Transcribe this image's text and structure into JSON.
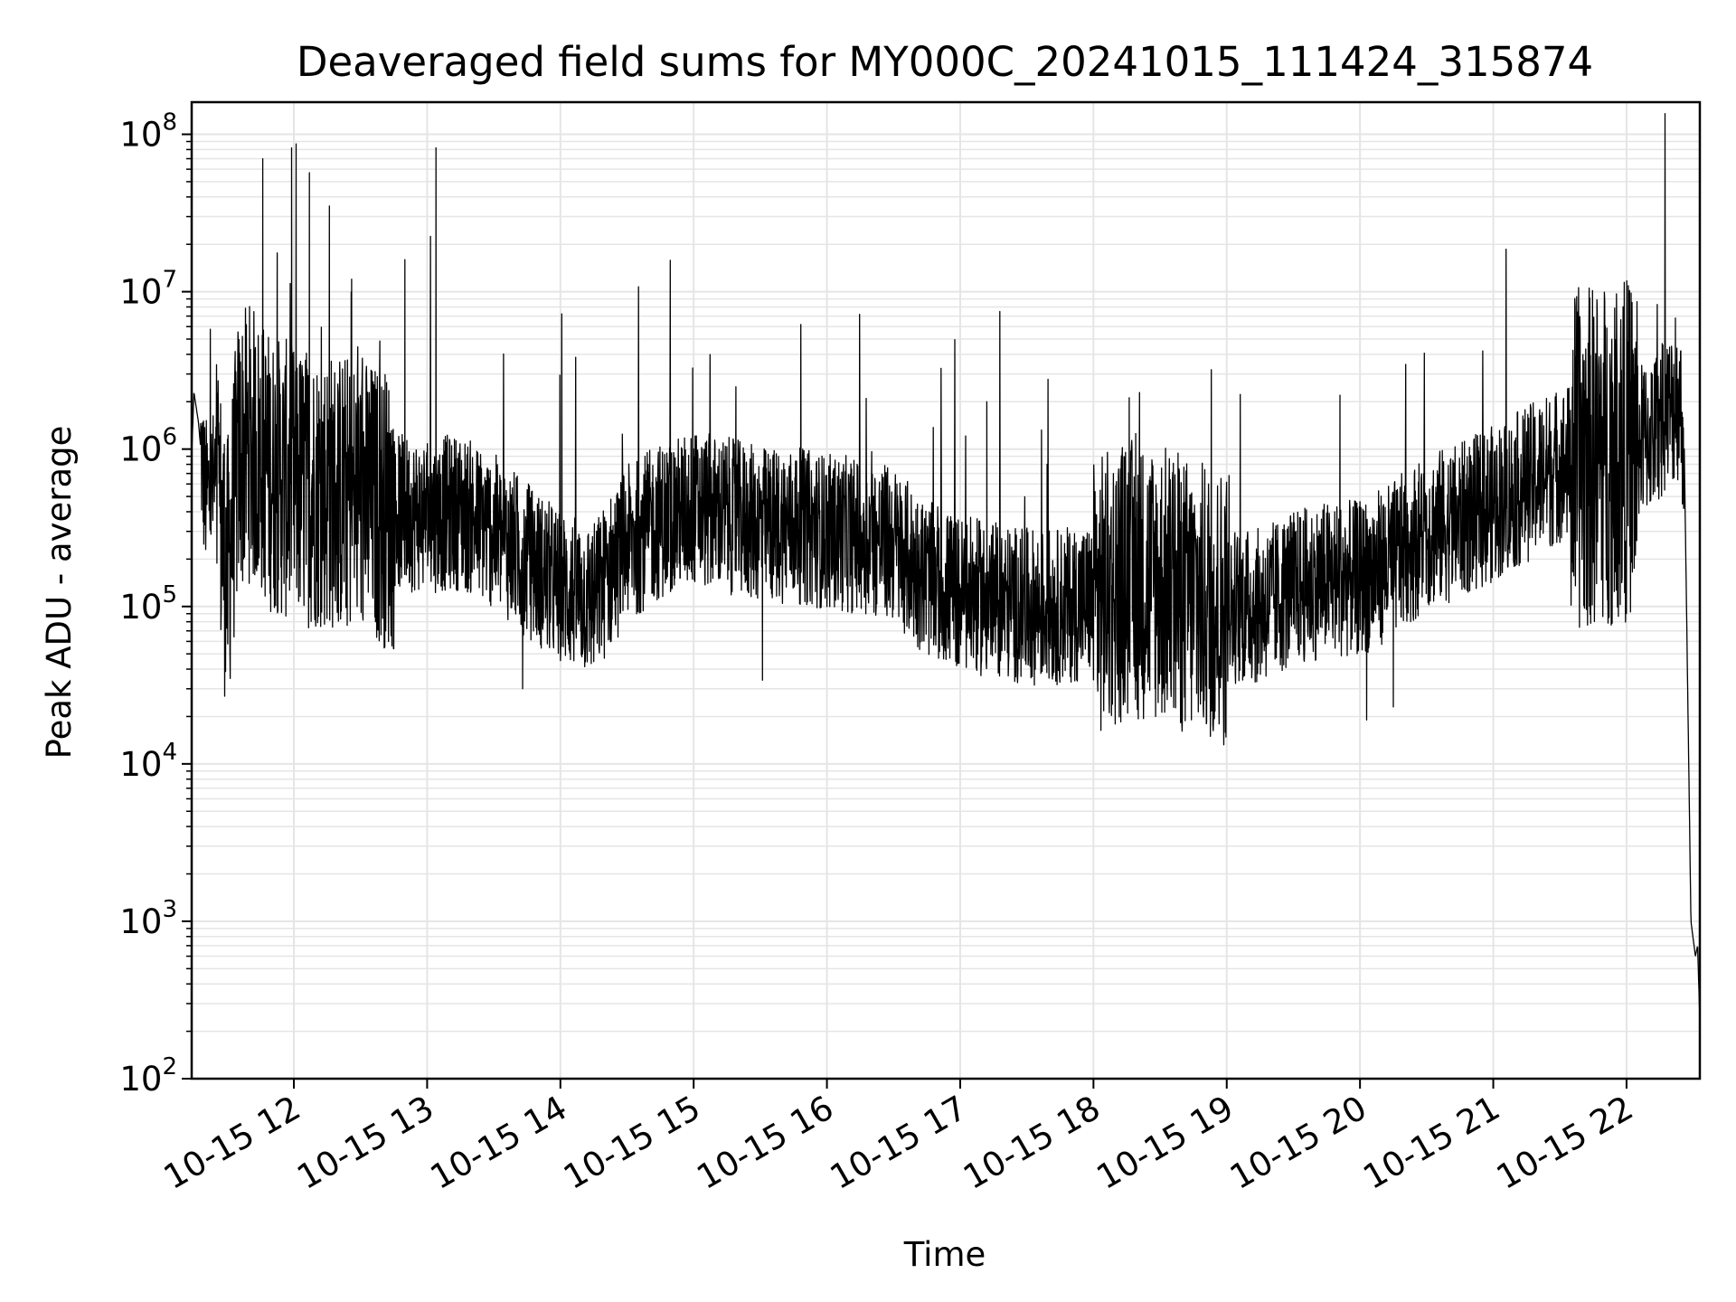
{
  "chart_data": {
    "type": "line",
    "title": "Deaveraged field sums for MY000C_20241015_111424_315874",
    "xlabel": "Time",
    "ylabel": "Peak ADU - average",
    "y_scale": "log",
    "ylim": [
      100,
      160000000
    ],
    "xlim": [
      "2024-10-15 11:14",
      "2024-10-15 22:33"
    ],
    "grid": true,
    "line_color": "#000000",
    "grid_color": "#e5e5e5",
    "x_ticks": [
      {
        "value": "2024-10-15 12:00",
        "label": "10-15 12"
      },
      {
        "value": "2024-10-15 13:00",
        "label": "10-15 13"
      },
      {
        "value": "2024-10-15 14:00",
        "label": "10-15 14"
      },
      {
        "value": "2024-10-15 15:00",
        "label": "10-15 15"
      },
      {
        "value": "2024-10-15 16:00",
        "label": "10-15 16"
      },
      {
        "value": "2024-10-15 17:00",
        "label": "10-15 17"
      },
      {
        "value": "2024-10-15 18:00",
        "label": "10-15 18"
      },
      {
        "value": "2024-10-15 19:00",
        "label": "10-15 19"
      },
      {
        "value": "2024-10-15 20:00",
        "label": "10-15 20"
      },
      {
        "value": "2024-10-15 21:00",
        "label": "10-15 21"
      },
      {
        "value": "2024-10-15 22:00",
        "label": "10-15 22"
      }
    ],
    "y_ticks": [
      {
        "value": 100,
        "base": "10",
        "exp": "2"
      },
      {
        "value": 1000,
        "base": "10",
        "exp": "3"
      },
      {
        "value": 10000,
        "base": "10",
        "exp": "4"
      },
      {
        "value": 100000,
        "base": "10",
        "exp": "5"
      },
      {
        "value": 1000000,
        "base": "10",
        "exp": "6"
      },
      {
        "value": 10000000,
        "base": "10",
        "exp": "7"
      },
      {
        "value": 100000000,
        "base": "10",
        "exp": "8"
      }
    ],
    "series": [
      {
        "points": [
          [
            "2024-10-15 11:14",
            900000
          ],
          [
            "2024-10-15 11:15",
            2300000
          ],
          [
            "2024-10-15 11:17",
            1500000
          ],
          [
            "2024-10-15 11:20",
            500000
          ],
          [
            "2024-10-15 11:25",
            600000
          ],
          [
            "2024-10-15 11:30",
            150000
          ],
          [
            "2024-10-15 11:35",
            900000
          ],
          [
            "2024-10-15 11:40",
            1100000
          ],
          [
            "2024-10-15 11:45",
            900000
          ],
          [
            "2024-10-15 11:50",
            700000
          ],
          [
            "2024-10-15 12:00",
            600000
          ],
          [
            "2024-10-15 12:15",
            550000
          ],
          [
            "2024-10-15 12:30",
            500000
          ],
          [
            "2024-10-15 12:45",
            400000
          ],
          [
            "2024-10-15 13:00",
            380000
          ],
          [
            "2024-10-15 13:15",
            400000
          ],
          [
            "2024-10-15 13:30",
            300000
          ],
          [
            "2024-10-15 13:45",
            200000
          ],
          [
            "2024-10-15 14:00",
            130000
          ],
          [
            "2024-10-15 14:15",
            110000
          ],
          [
            "2024-10-15 14:30",
            250000
          ],
          [
            "2024-10-15 14:45",
            350000
          ],
          [
            "2024-10-15 15:00",
            420000
          ],
          [
            "2024-10-15 15:15",
            380000
          ],
          [
            "2024-10-15 15:30",
            330000
          ],
          [
            "2024-10-15 15:45",
            330000
          ],
          [
            "2024-10-15 16:00",
            300000
          ],
          [
            "2024-10-15 16:15",
            280000
          ],
          [
            "2024-10-15 16:30",
            250000
          ],
          [
            "2024-10-15 16:45",
            150000
          ],
          [
            "2024-10-15 17:00",
            120000
          ],
          [
            "2024-10-15 17:15",
            110000
          ],
          [
            "2024-10-15 17:30",
            100000
          ],
          [
            "2024-10-15 17:45",
            100000
          ],
          [
            "2024-10-15 18:00",
            110000
          ],
          [
            "2024-10-15 18:15",
            150000
          ],
          [
            "2024-10-15 18:30",
            140000
          ],
          [
            "2024-10-15 18:45",
            110000
          ],
          [
            "2024-10-15 19:00",
            100000
          ],
          [
            "2024-10-15 19:15",
            100000
          ],
          [
            "2024-10-15 19:30",
            130000
          ],
          [
            "2024-10-15 19:45",
            150000
          ],
          [
            "2024-10-15 20:00",
            150000
          ],
          [
            "2024-10-15 20:15",
            200000
          ],
          [
            "2024-10-15 20:30",
            300000
          ],
          [
            "2024-10-15 20:45",
            350000
          ],
          [
            "2024-10-15 21:00",
            450000
          ],
          [
            "2024-10-15 21:15",
            600000
          ],
          [
            "2024-10-15 21:30",
            800000
          ],
          [
            "2024-10-15 21:45",
            900000
          ],
          [
            "2024-10-15 22:00",
            1000000
          ],
          [
            "2024-10-15 22:10",
            1200000
          ],
          [
            "2024-10-15 22:20",
            1800000
          ],
          [
            "2024-10-15 22:24",
            2000000
          ],
          [
            "2024-10-15 22:26",
            1000000
          ],
          [
            "2024-10-15 22:29",
            1000
          ],
          [
            "2024-10-15 22:31",
            600
          ],
          [
            "2024-10-15 22:32",
            700
          ],
          [
            "2024-10-15 22:33",
            230
          ]
        ]
      }
    ],
    "notable_peaks": [
      [
        "2024-10-15 11:46",
        70000000
      ],
      [
        "2024-10-15 11:59",
        82000000
      ],
      [
        "2024-10-15 12:01",
        87000000
      ],
      [
        "2024-10-15 12:07",
        57000000
      ],
      [
        "2024-10-15 12:16",
        35000000
      ],
      [
        "2024-10-15 12:26",
        12000000
      ],
      [
        "2024-10-15 12:50",
        16000000
      ],
      [
        "2024-10-15 13:04",
        82000000
      ],
      [
        "2024-10-15 17:12",
        2000000
      ],
      [
        "2024-10-15 19:51",
        2200000
      ],
      [
        "2024-10-15 22:22",
        6800000
      ]
    ],
    "notable_dips": [
      [
        "2024-10-15 13:43",
        30000
      ],
      [
        "2024-10-15 15:31",
        34000
      ],
      [
        "2024-10-15 20:03",
        19000
      ],
      [
        "2024-10-15 20:15",
        23000
      ]
    ]
  }
}
